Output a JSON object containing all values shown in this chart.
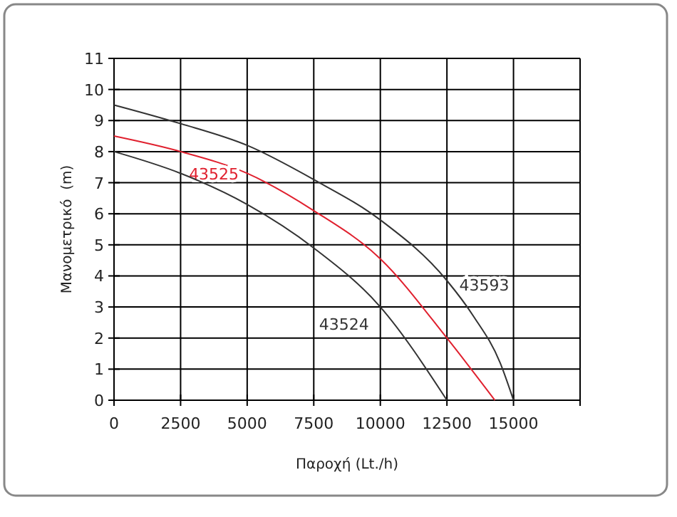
{
  "chart_data": {
    "type": "line",
    "xlabel": "Παροχή (Lt./h)",
    "ylabel": "Μανομετρικό  (m)",
    "xlim": [
      0,
      17500
    ],
    "xticks": [
      0,
      2500,
      5000,
      7500,
      10000,
      12500,
      15000,
      {
        "value": 17500,
        "label": null
      }
    ],
    "ylim": [
      0,
      11
    ],
    "yticks": [
      0,
      1,
      2,
      3,
      4,
      5,
      6,
      7,
      8,
      9,
      10,
      11
    ],
    "grid": true,
    "marker": "none",
    "line_style": "solid",
    "series": [
      {
        "name": "43593",
        "color": "#333333",
        "x": [
          0,
          2500,
          5000,
          7500,
          10000,
          12500,
          13500,
          14500,
          15000
        ],
        "values": [
          9.5,
          8.9,
          8.2,
          7.1,
          5.8,
          3.85,
          2.7,
          1.2,
          0
        ]
      },
      {
        "name": "43525",
        "color": "#e0202e",
        "x": [
          0,
          2500,
          5000,
          7500,
          10000,
          12500,
          14300
        ],
        "values": [
          8.5,
          8.0,
          7.3,
          6.1,
          4.55,
          2.0,
          0
        ]
      },
      {
        "name": "43524",
        "color": "#333333",
        "x": [
          0,
          2500,
          5000,
          7500,
          10000,
          12500
        ],
        "values": [
          8.0,
          7.3,
          6.3,
          4.9,
          3.0,
          0
        ]
      }
    ]
  }
}
